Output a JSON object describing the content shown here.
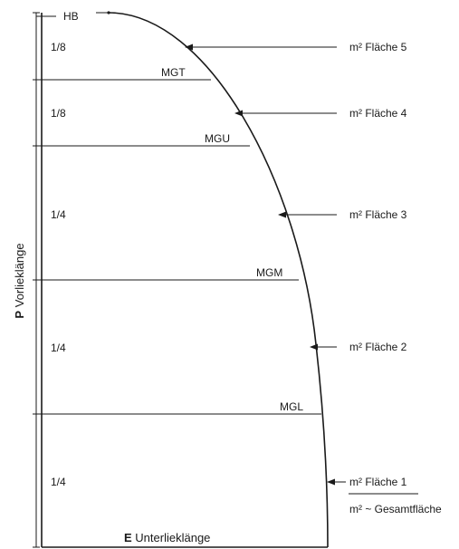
{
  "head_label": "HB",
  "sections": [
    {
      "fraction": "1/8"
    },
    {
      "fraction": "1/8"
    },
    {
      "fraction": "1/4"
    },
    {
      "fraction": "1/4"
    },
    {
      "fraction": "1/4"
    }
  ],
  "girths": [
    {
      "label": "MGT"
    },
    {
      "label": "MGU"
    },
    {
      "label": "MGM"
    },
    {
      "label": "MGL"
    }
  ],
  "areas": [
    {
      "label": "m² Fläche 5"
    },
    {
      "label": "m² Fläche 4"
    },
    {
      "label": "m² Fläche 3"
    },
    {
      "label": "m² Fläche 2"
    },
    {
      "label": "m² Fläche 1"
    }
  ],
  "total_area": "m² ~ Gesamtfläche",
  "luff": {
    "symbol": "P",
    "name": "Vorlieklänge"
  },
  "foot": {
    "symbol": "E",
    "name": "Unterlieklänge"
  }
}
